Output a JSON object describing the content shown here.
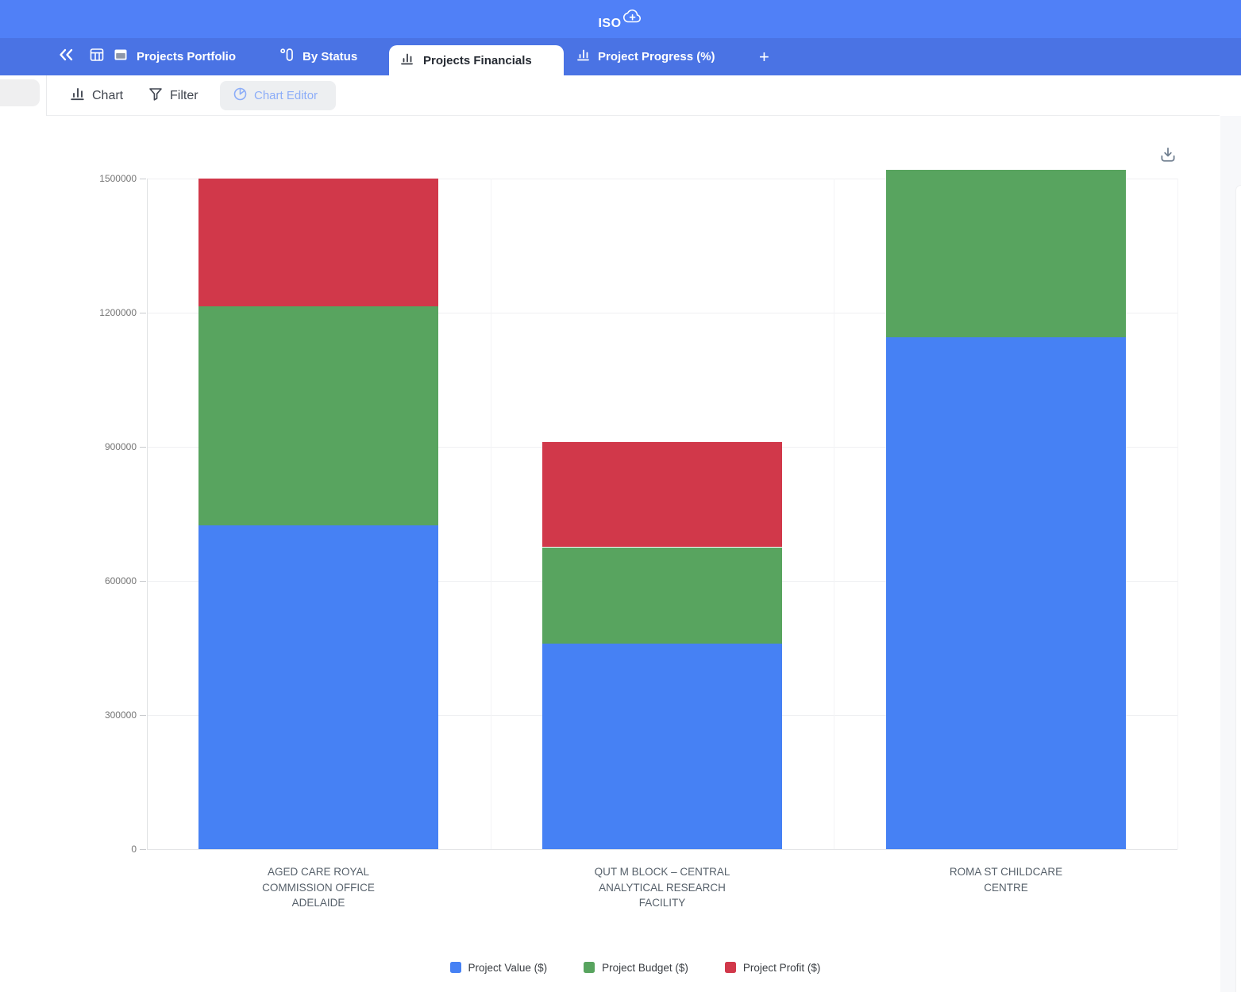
{
  "app": {
    "logo_text": "ISO",
    "logo_plus": "+"
  },
  "colors": {
    "header_bg": "#5080F7",
    "tabbar_bg": "#4A73E4",
    "active_tab_text": "#262B33",
    "series_blue": "#4681F4",
    "series_green": "#58A45F",
    "series_red": "#D1384A"
  },
  "icons": {
    "logo": "cloud-plus-icon",
    "collapse": "double-chevron-left-icon",
    "table_view": "table-grid-icon",
    "record_view": "card-icon",
    "by_status": "group-by-icon",
    "chart_tab": "bar-chart-icon",
    "toolbar_chart": "bar-chart-icon",
    "filter": "funnel-icon",
    "chart_editor": "pie-chart-icon",
    "add_tab": "plus-icon",
    "download": "download-tray-icon"
  },
  "tab_bar": {
    "portfolio_label": "Projects Portfolio",
    "by_status_label": "By Status",
    "financials_label": "Projects Financials",
    "progress_label": "Project Progress (%)",
    "add_tab_label": "+"
  },
  "toolbar": {
    "chart_label": "Chart",
    "filter_label": "Filter",
    "chart_editor_label": "Chart Editor"
  },
  "chart_data": {
    "type": "bar",
    "stacked": true,
    "title": "",
    "xlabel": "",
    "ylabel": "",
    "categories": [
      "AGED CARE ROYAL COMMISSION OFFICE ADELAIDE",
      "QUT M BLOCK – CENTRAL ANALYTICAL RESEARCH FACILITY",
      "ROMA ST CHILDCARE CENTRE"
    ],
    "category_lines": [
      [
        "AGED CARE ROYAL",
        "COMMISSION OFFICE",
        "ADELAIDE"
      ],
      [
        "QUT M BLOCK – CENTRAL",
        "ANALYTICAL RESEARCH",
        "FACILITY"
      ],
      [
        "ROMA ST CHILDCARE",
        "CENTRE"
      ]
    ],
    "series": [
      {
        "name": "Project Value ($)",
        "color": "#4681F4",
        "values": [
          725000,
          460000,
          1145000
        ]
      },
      {
        "name": "Project Budget ($)",
        "color": "#58A45F",
        "values": [
          490000,
          215000,
          375000
        ]
      },
      {
        "name": "Project Profit ($)",
        "color": "#D1384A",
        "values": [
          285000,
          235000,
          0
        ]
      }
    ],
    "stack_totals": [
      1500000,
      910000,
      1520000
    ],
    "ylim": [
      0,
      1500000
    ],
    "yticks": [
      0,
      300000,
      600000,
      900000,
      1200000,
      1500000
    ],
    "grid": true,
    "legend_position": "bottom"
  }
}
